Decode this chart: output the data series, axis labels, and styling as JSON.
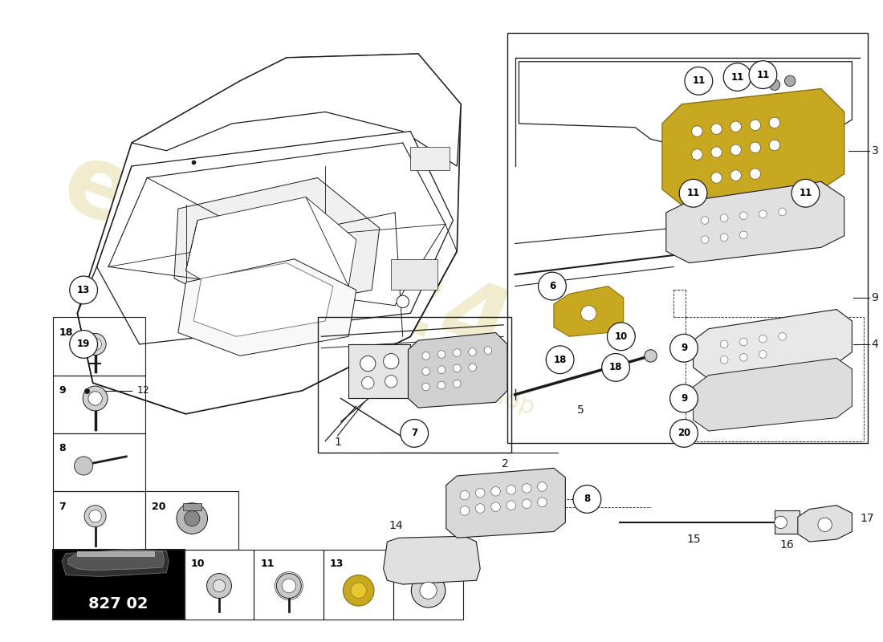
{
  "bg_color": "#ffffff",
  "watermark_color": "#d4c870",
  "line_color": "#1a1a1a",
  "lw": 0.8,
  "part_number": "827 02",
  "callout_r": 0.018
}
